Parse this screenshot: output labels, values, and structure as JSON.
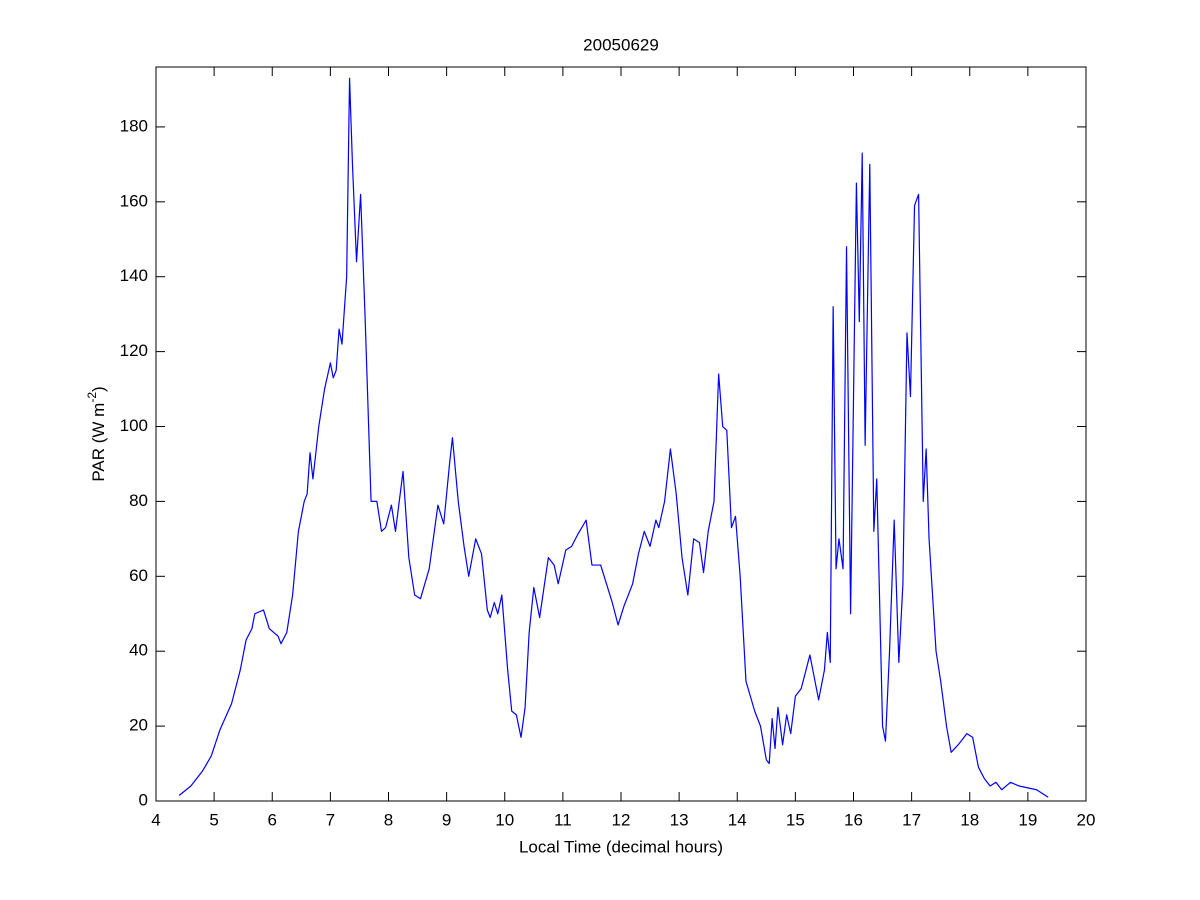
{
  "chart_data": {
    "type": "line",
    "title": "20050629",
    "xlabel": "Local Time (decimal hours)",
    "ylabel": [
      "PAR (W m",
      "-2",
      ")"
    ],
    "xlim": [
      4,
      20
    ],
    "xticks": [
      4,
      5,
      6,
      7,
      8,
      9,
      10,
      11,
      12,
      13,
      14,
      15,
      16,
      17,
      18,
      19,
      20
    ],
    "ylim": [
      0,
      196
    ],
    "yticks": [
      0,
      20,
      40,
      60,
      80,
      100,
      120,
      140,
      160,
      180
    ],
    "grid": false,
    "series": [
      {
        "name": "PAR",
        "color": "#0000ff",
        "x": [
          4.4,
          4.6,
          4.8,
          4.95,
          5.1,
          5.3,
          5.45,
          5.55,
          5.65,
          5.7,
          5.85,
          5.95,
          6.1,
          6.15,
          6.25,
          6.35,
          6.45,
          6.55,
          6.6,
          6.65,
          6.7,
          6.8,
          6.9,
          7.0,
          7.05,
          7.1,
          7.15,
          7.2,
          7.28,
          7.33,
          7.38,
          7.45,
          7.52,
          7.6,
          7.7,
          7.8,
          7.88,
          7.95,
          8.05,
          8.12,
          8.25,
          8.35,
          8.45,
          8.55,
          8.7,
          8.85,
          8.95,
          9.05,
          9.1,
          9.2,
          9.3,
          9.38,
          9.5,
          9.6,
          9.7,
          9.75,
          9.82,
          9.88,
          9.95,
          10.05,
          10.12,
          10.2,
          10.28,
          10.35,
          10.42,
          10.5,
          10.6,
          10.75,
          10.85,
          10.92,
          11.05,
          11.15,
          11.25,
          11.4,
          11.5,
          11.65,
          11.75,
          11.85,
          11.95,
          12.05,
          12.2,
          12.3,
          12.4,
          12.5,
          12.6,
          12.65,
          12.75,
          12.85,
          12.95,
          13.05,
          13.15,
          13.25,
          13.35,
          13.42,
          13.5,
          13.6,
          13.68,
          13.75,
          13.82,
          13.9,
          13.97,
          14.05,
          14.15,
          14.3,
          14.4,
          14.5,
          14.55,
          14.6,
          14.65,
          14.7,
          14.78,
          14.85,
          14.92,
          15.0,
          15.1,
          15.25,
          15.3,
          15.4,
          15.5,
          15.55,
          15.6,
          15.65,
          15.7,
          15.75,
          15.82,
          15.88,
          15.95,
          16.05,
          16.1,
          16.15,
          16.2,
          16.28,
          16.35,
          16.4,
          16.5,
          16.55,
          16.62,
          16.7,
          16.78,
          16.85,
          16.92,
          16.98,
          17.05,
          17.12,
          17.2,
          17.25,
          17.3,
          17.42,
          17.5,
          17.6,
          17.68,
          17.8,
          17.95,
          18.05,
          18.15,
          18.25,
          18.35,
          18.45,
          18.55,
          18.7,
          18.85,
          19.0,
          19.15,
          19.35
        ],
        "values": [
          1.5,
          4,
          8,
          12,
          19,
          26,
          35,
          43,
          46,
          50,
          51,
          46,
          44,
          42,
          45,
          55,
          72,
          80,
          82,
          93,
          86,
          100,
          110,
          117,
          113,
          115,
          126,
          122,
          140,
          193,
          170,
          144,
          162,
          128,
          80,
          80,
          72,
          73,
          79,
          72,
          88,
          65,
          55,
          54,
          62,
          79,
          74,
          90,
          97,
          80,
          68,
          60,
          70,
          66,
          51,
          49,
          53,
          50,
          55,
          35,
          24,
          23,
          17,
          25,
          45,
          57,
          49,
          65,
          63,
          58,
          67,
          68,
          71,
          75,
          63,
          63,
          58,
          53,
          47,
          52,
          58,
          66,
          72,
          68,
          75,
          73,
          80,
          94,
          82,
          65,
          55,
          70,
          69,
          61,
          72,
          80,
          114,
          100,
          99,
          73,
          76,
          60,
          32,
          24,
          20,
          11,
          10,
          22,
          14,
          25,
          15,
          23,
          18,
          28,
          30,
          39,
          35,
          27,
          35,
          45,
          37,
          132,
          62,
          70,
          62,
          148,
          50,
          165,
          128,
          173,
          95,
          170,
          72,
          86,
          20,
          16,
          40,
          75,
          37,
          58,
          125,
          108,
          159,
          162,
          80,
          94,
          70,
          40,
          32,
          20,
          13,
          15,
          18,
          17,
          9,
          6,
          4,
          5,
          3,
          5,
          4,
          3.5,
          3,
          1
        ]
      }
    ]
  }
}
